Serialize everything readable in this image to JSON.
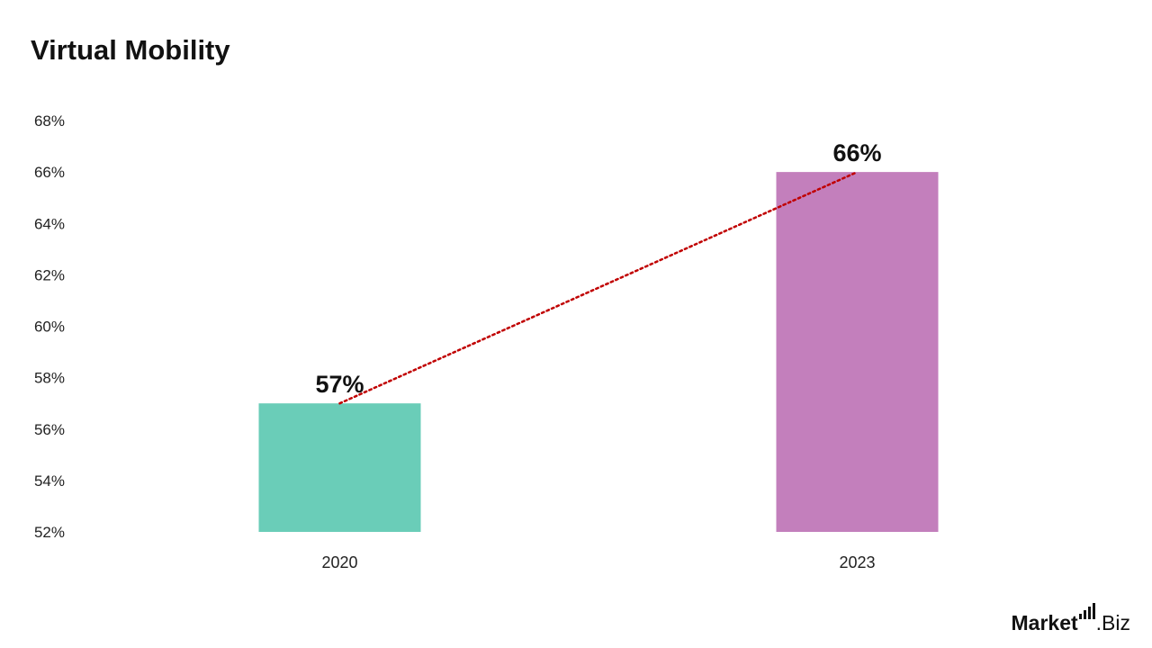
{
  "chart_data": {
    "type": "bar",
    "title": "Virtual Mobility",
    "categories": [
      "2020",
      "2023"
    ],
    "values": [
      57,
      66
    ],
    "value_labels": [
      "57%",
      "66%"
    ],
    "bar_colors": [
      "#6ACDB8",
      "#C37FBC"
    ],
    "ylim": [
      52,
      68
    ],
    "yticks": [
      52,
      54,
      56,
      58,
      60,
      62,
      64,
      66,
      68
    ],
    "ytick_labels": [
      "52%",
      "54%",
      "56%",
      "58%",
      "60%",
      "62%",
      "64%",
      "66%",
      "68%"
    ],
    "trend_line": {
      "style": "dotted",
      "color": "#C00000"
    },
    "grid": false,
    "legend": "none"
  },
  "logo": {
    "text_bold": "Market",
    "text_regular": ".Biz"
  }
}
